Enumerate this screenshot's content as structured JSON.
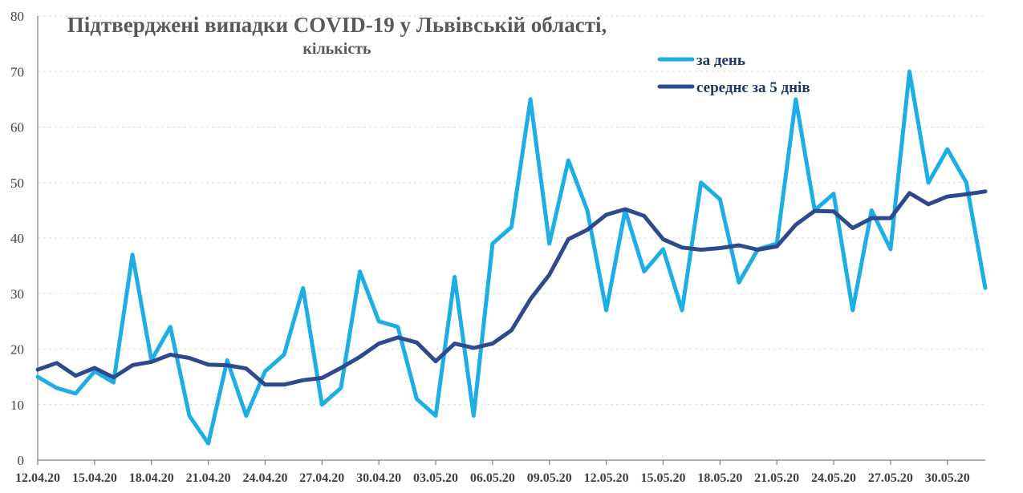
{
  "chart_data": {
    "type": "line",
    "title": "Підтверджені випадки COVID-19 у Львівській області,",
    "subtitle": "кількість",
    "xlabel": "",
    "ylabel": "",
    "ylim": [
      0,
      80
    ],
    "yticks": [
      0,
      10,
      20,
      30,
      40,
      50,
      60,
      70,
      80
    ],
    "grid": true,
    "legend": "top-right",
    "x": [
      "12.04.20",
      "13.04.20",
      "14.04.20",
      "15.04.20",
      "16.04.20",
      "17.04.20",
      "18.04.20",
      "19.04.20",
      "20.04.20",
      "21.04.20",
      "22.04.20",
      "23.04.20",
      "24.04.20",
      "25.04.20",
      "26.04.20",
      "27.04.20",
      "28.04.20",
      "29.04.20",
      "30.04.20",
      "01.05.20",
      "02.05.20",
      "03.05.20",
      "04.05.20",
      "05.05.20",
      "06.05.20",
      "07.05.20",
      "08.05.20",
      "09.05.20",
      "10.05.20",
      "11.05.20",
      "12.05.20",
      "13.05.20",
      "14.05.20",
      "15.05.20",
      "16.05.20",
      "17.05.20",
      "18.05.20",
      "19.05.20",
      "20.05.20",
      "21.05.20",
      "22.05.20",
      "23.05.20",
      "24.05.20",
      "25.05.20",
      "26.05.20",
      "27.05.20",
      "28.05.20",
      "29.05.20",
      "30.05.20",
      "31.05.20",
      "01.06.20"
    ],
    "xtick_labels": [
      "12.04.20",
      "15.04.20",
      "18.04.20",
      "21.04.20",
      "24.04.20",
      "27.04.20",
      "30.04.20",
      "03.05.20",
      "06.05.20",
      "09.05.20",
      "12.05.20",
      "15.05.20",
      "18.05.20",
      "21.05.20",
      "24.05.20",
      "27.05.20",
      "30.05.20"
    ],
    "series": [
      {
        "name": "за день",
        "color": "#1caee4",
        "values": [
          15,
          13,
          12,
          16,
          14,
          37,
          18,
          24,
          8,
          3,
          18,
          8,
          16,
          19,
          31,
          10,
          13,
          34,
          25,
          24,
          11,
          8,
          33,
          8,
          39,
          42,
          65,
          39,
          54,
          45,
          27,
          45,
          34,
          38,
          27,
          50,
          47,
          32,
          38,
          39,
          65,
          45,
          48,
          27,
          45,
          38,
          70,
          50,
          56,
          50,
          31
        ]
      },
      {
        "name": "середнє за 5 днів",
        "color": "#2e4a8e",
        "values": [
          16.3,
          17.5,
          15.2,
          16.6,
          14.9,
          17.1,
          17.7,
          19.0,
          18.4,
          17.2,
          17.1,
          16.5,
          13.6,
          13.6,
          14.4,
          14.8,
          16.6,
          18.6,
          21.0,
          22.1,
          21.2,
          17.8,
          21.0,
          20.2,
          21.0,
          23.4,
          29.0,
          33.4,
          39.8,
          41.5,
          44.2,
          45.2,
          44.0,
          39.8,
          38.3,
          37.9,
          38.2,
          38.7,
          37.9,
          38.5,
          42.4,
          44.9,
          44.8,
          41.8,
          43.6,
          43.6,
          48.1,
          46.1,
          47.5,
          47.9,
          48.4
        ]
      }
    ]
  }
}
